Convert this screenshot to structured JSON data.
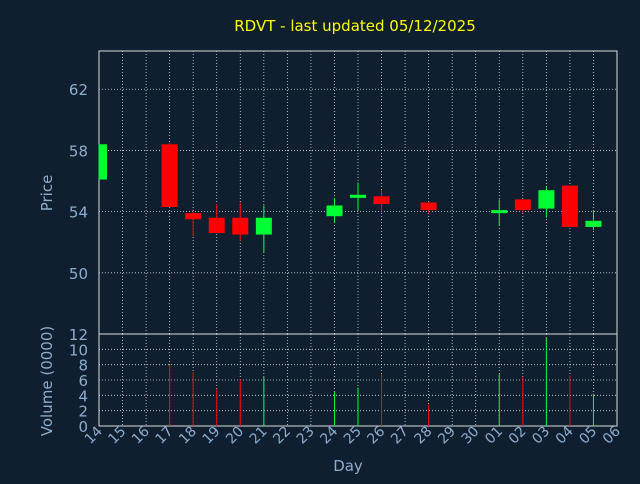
{
  "chart_data": {
    "type": "candlestick",
    "title": "RDVT - last updated 05/12/2025",
    "colors": {
      "background": "#0f1f30",
      "up": "#00ff33",
      "down": "#ff0000",
      "title": "#ffff00",
      "axis_text": "#8eaccc",
      "frame": "#d8d8d8",
      "grid": "#d8d8d8"
    },
    "xlabel": "Day",
    "x_ticks": [
      "14",
      "15",
      "16",
      "17",
      "18",
      "19",
      "20",
      "21",
      "22",
      "23",
      "24",
      "25",
      "26",
      "27",
      "28",
      "29",
      "30",
      "01",
      "02",
      "03",
      "04",
      "05",
      "06"
    ],
    "price_panel": {
      "ylabel": "Price",
      "ylim": [
        46.0,
        64.5
      ],
      "y_ticks": [
        50,
        54,
        58,
        62
      ],
      "candles": [
        {
          "day": "14",
          "open": 56.1,
          "close": 58.4,
          "high": 58.4,
          "low": 56.1
        },
        {
          "day": "17",
          "open": 58.4,
          "close": 54.3,
          "high": 58.5,
          "low": 54.3
        },
        {
          "day": "18",
          "open": 53.9,
          "close": 53.5,
          "high": 54.0,
          "low": 52.4
        },
        {
          "day": "19",
          "open": 53.6,
          "close": 52.6,
          "high": 54.5,
          "low": 52.6
        },
        {
          "day": "20",
          "open": 53.6,
          "close": 52.5,
          "high": 54.6,
          "low": 52.1
        },
        {
          "day": "21",
          "open": 52.5,
          "close": 53.6,
          "high": 54.4,
          "low": 51.3
        },
        {
          "day": "24",
          "open": 53.7,
          "close": 54.4,
          "high": 54.9,
          "low": 53.3
        },
        {
          "day": "25",
          "open": 54.9,
          "close": 55.1,
          "high": 55.9,
          "low": 54.1
        },
        {
          "day": "26",
          "open": 55.0,
          "close": 54.5,
          "high": 55.4,
          "low": 54.0
        },
        {
          "day": "28",
          "open": 54.6,
          "close": 54.1,
          "high": 54.6,
          "low": 53.9
        },
        {
          "day": "01",
          "open": 53.9,
          "close": 54.1,
          "high": 54.8,
          "low": 53.1
        },
        {
          "day": "02",
          "open": 54.8,
          "close": 54.1,
          "high": 54.8,
          "low": 53.9
        },
        {
          "day": "03",
          "open": 54.2,
          "close": 55.4,
          "high": 55.6,
          "low": 53.6
        },
        {
          "day": "04",
          "open": 55.7,
          "close": 53.0,
          "high": 55.7,
          "low": 53.0
        },
        {
          "day": "05",
          "open": 53.0,
          "close": 53.4,
          "high": 54.1,
          "low": 52.8
        }
      ]
    },
    "volume_panel": {
      "ylabel": "Volume (0000)",
      "ylim": [
        0,
        12
      ],
      "y_ticks": [
        0,
        2,
        4,
        6,
        8,
        10,
        12
      ],
      "bars": [
        {
          "day": "17",
          "value": 8.0,
          "direction": "down"
        },
        {
          "day": "18",
          "value": 7.0,
          "direction": "down"
        },
        {
          "day": "19",
          "value": 4.8,
          "direction": "down"
        },
        {
          "day": "20",
          "value": 6.1,
          "direction": "down"
        },
        {
          "day": "21",
          "value": 6.4,
          "direction": "up"
        },
        {
          "day": "24",
          "value": 4.4,
          "direction": "up"
        },
        {
          "day": "25",
          "value": 5.0,
          "direction": "up"
        },
        {
          "day": "26",
          "value": 6.8,
          "direction": "down"
        },
        {
          "day": "28",
          "value": 2.8,
          "direction": "down"
        },
        {
          "day": "01",
          "value": 6.8,
          "direction": "up"
        },
        {
          "day": "02",
          "value": 6.4,
          "direction": "down"
        },
        {
          "day": "03",
          "value": 11.5,
          "direction": "up"
        },
        {
          "day": "04",
          "value": 6.6,
          "direction": "down"
        },
        {
          "day": "05",
          "value": 4.2,
          "direction": "up"
        }
      ]
    }
  }
}
